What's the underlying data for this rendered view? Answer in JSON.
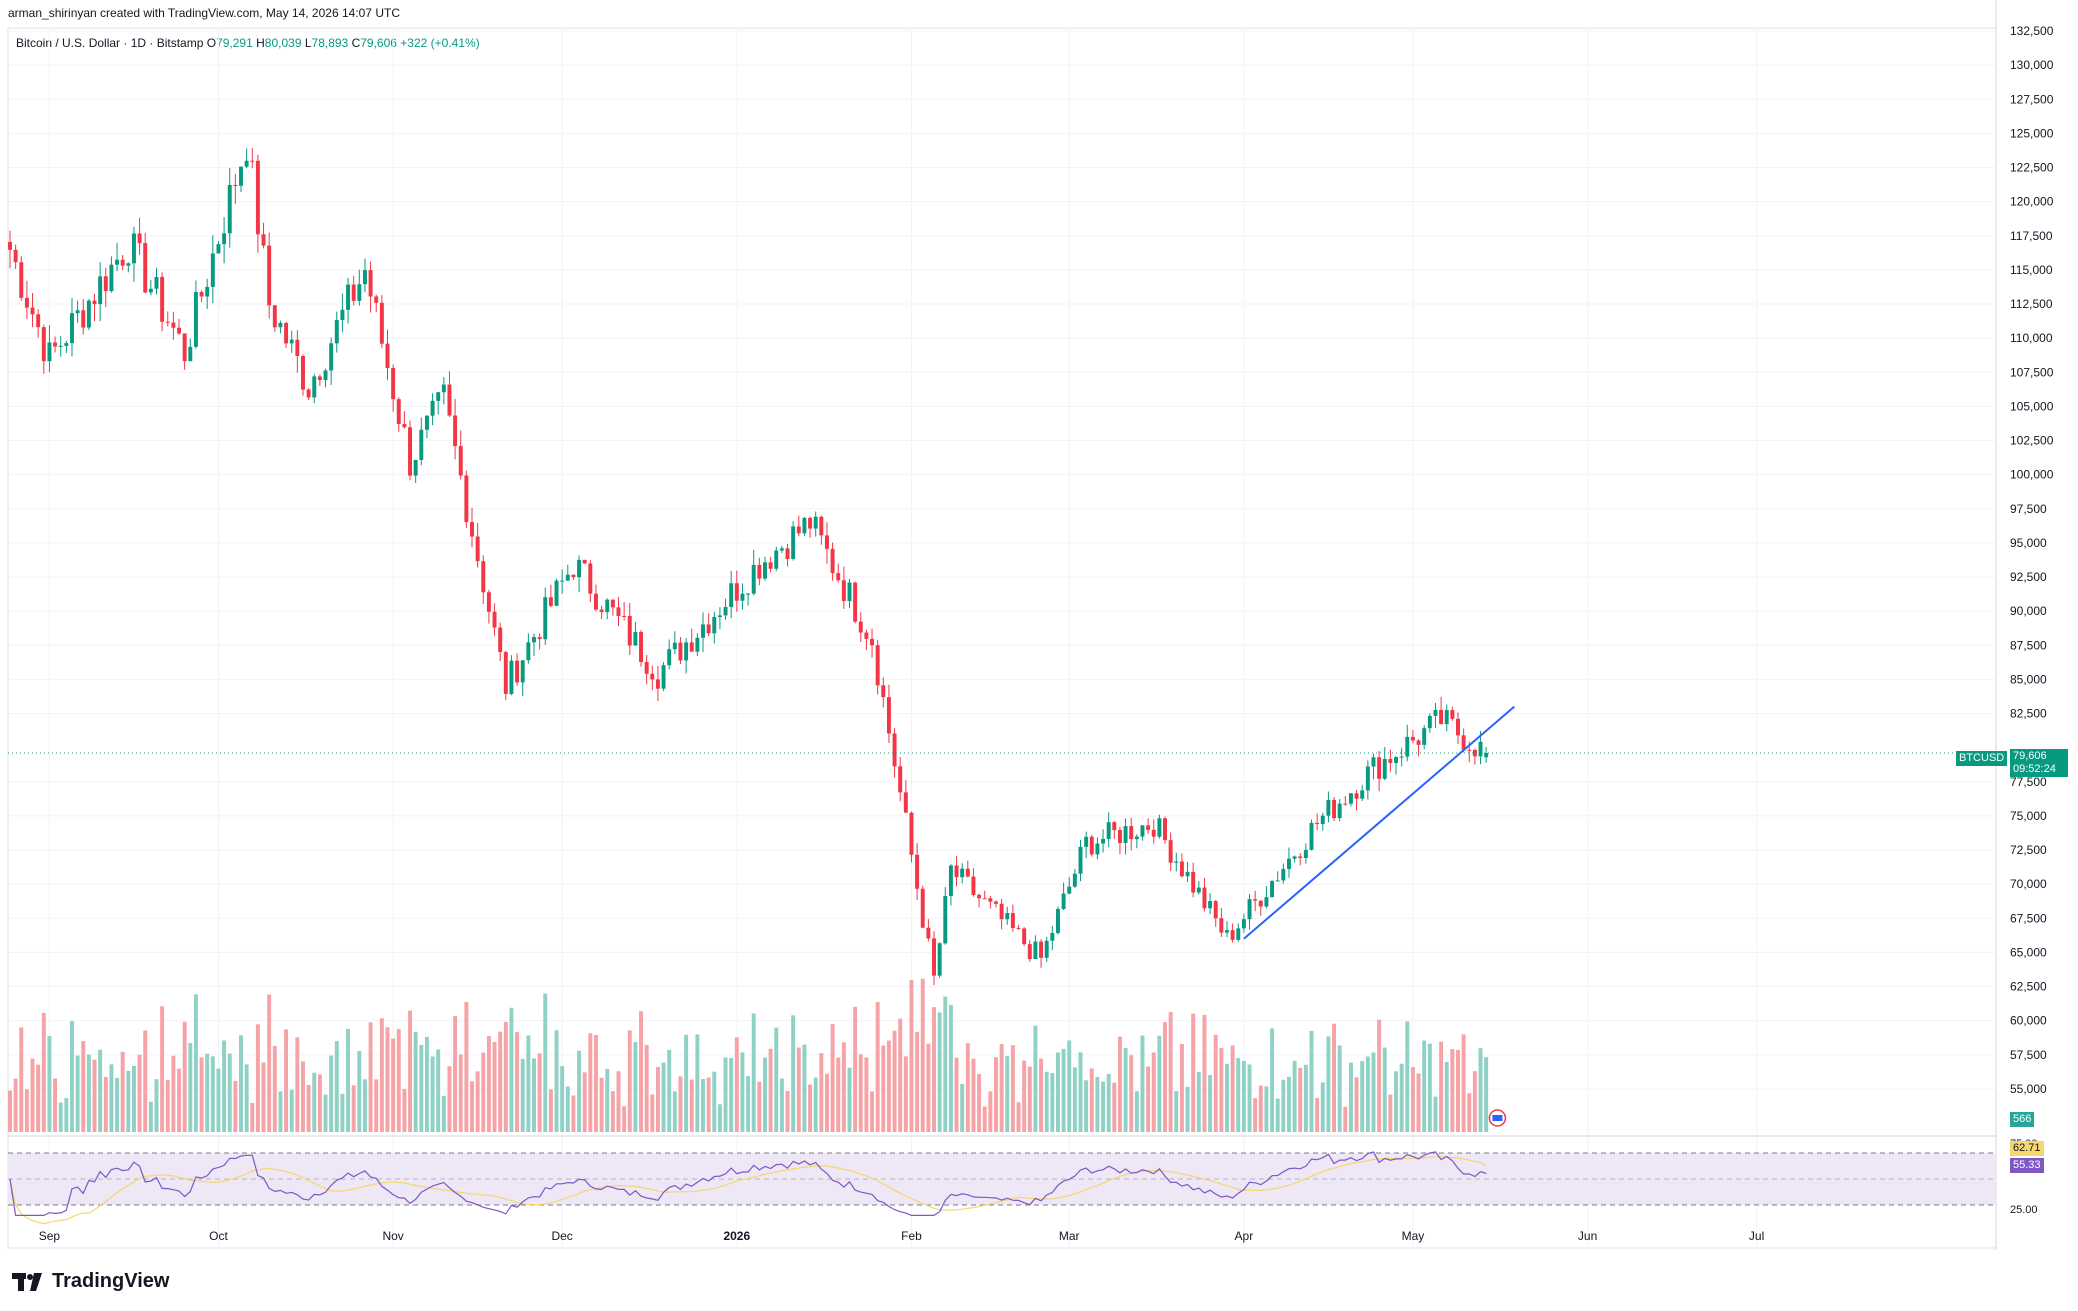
{
  "header": {
    "attribution": "arman_shirinyan created with TradingView.com, May 14, 2026 14:07 UTC"
  },
  "legend": {
    "symbol_desc": "Bitcoin / U.S. Dollar · 1D · Bitstamp",
    "o_label": "O",
    "o_value": "79,291",
    "h_label": "H",
    "h_value": "80,039",
    "l_label": "L",
    "l_value": "78,893",
    "c_label": "C",
    "c_value": "79,606",
    "change": "+322 (+0.41%)"
  },
  "price_tag": {
    "symbol": "BTCUSD",
    "price": "79,606",
    "countdown": "09:52:24"
  },
  "volume_tag": "566",
  "rsi_tags": {
    "ma": "62.71",
    "rsi": "55.33"
  },
  "rsi_axis": [
    "75.00",
    "25.00"
  ],
  "brand": {
    "name": "TradingView"
  },
  "colors": {
    "up": "#089981",
    "down": "#f23645",
    "up_vol": "#8fd1c4",
    "down_vol": "#f5a3a6",
    "trendline": "#2962ff",
    "rsi_line": "#7e57c2",
    "rsi_ma": "#f5d76e",
    "rsi_band": "#ede7f6"
  },
  "chart_data": {
    "type": "candlestick",
    "symbol": "BTCUSD",
    "price_axis_ticks": [
      "132,500",
      "130,000",
      "127,500",
      "125,000",
      "122,500",
      "120,000",
      "117,500",
      "115,000",
      "112,500",
      "110,000",
      "107,500",
      "105,000",
      "102,500",
      "100,000",
      "97,500",
      "95,000",
      "92,500",
      "90,000",
      "87,500",
      "85,000",
      "82,500",
      "77,500",
      "75,000",
      "72,500",
      "70,000",
      "67,500",
      "65,000",
      "62,500",
      "60,000",
      "57,500",
      "55,000"
    ],
    "time_axis_ticks": [
      "Sep",
      "Oct",
      "Nov",
      "Dec",
      "2026",
      "Feb",
      "Mar",
      "Apr",
      "May",
      "Jun",
      "Jul"
    ],
    "price_range": [
      52500,
      132500
    ],
    "last_price": 79606,
    "key_points": [
      {
        "date": "2025-08-25",
        "close": 116500
      },
      {
        "date": "2025-09-01",
        "close": 108500
      },
      {
        "date": "2025-09-15",
        "close": 117000
      },
      {
        "date": "2025-09-25",
        "close": 109000
      },
      {
        "date": "2025-10-06",
        "close": 124500
      },
      {
        "date": "2025-10-10",
        "close": 112500
      },
      {
        "date": "2025-10-17",
        "close": 106500
      },
      {
        "date": "2025-10-27",
        "close": 115000
      },
      {
        "date": "2025-11-04",
        "close": 101000
      },
      {
        "date": "2025-11-10",
        "close": 105500
      },
      {
        "date": "2025-11-21",
        "close": 84500
      },
      {
        "date": "2025-12-03",
        "close": 93500
      },
      {
        "date": "2025-12-18",
        "close": 85500
      },
      {
        "date": "2026-01-05",
        "close": 93500
      },
      {
        "date": "2026-01-14",
        "close": 96500
      },
      {
        "date": "2026-01-25",
        "close": 88000
      },
      {
        "date": "2026-02-05",
        "close": 63000
      },
      {
        "date": "2026-02-08",
        "close": 71000
      },
      {
        "date": "2026-02-24",
        "close": 64500
      },
      {
        "date": "2026-03-04",
        "close": 73000
      },
      {
        "date": "2026-03-16",
        "close": 74500
      },
      {
        "date": "2026-03-29",
        "close": 66000
      },
      {
        "date": "2026-04-14",
        "close": 74500
      },
      {
        "date": "2026-04-24",
        "close": 78500
      },
      {
        "date": "2026-05-06",
        "close": 82000
      },
      {
        "date": "2026-05-14",
        "close": 79606
      }
    ],
    "trendline": {
      "start": {
        "date": "2026-04-01",
        "price": 66000
      },
      "end": {
        "date": "2026-05-19",
        "price": 83000
      }
    },
    "rsi": {
      "upper": 75,
      "lower": 25,
      "value": 55.33,
      "ma_value": 62.71
    },
    "volume_last": 566
  }
}
